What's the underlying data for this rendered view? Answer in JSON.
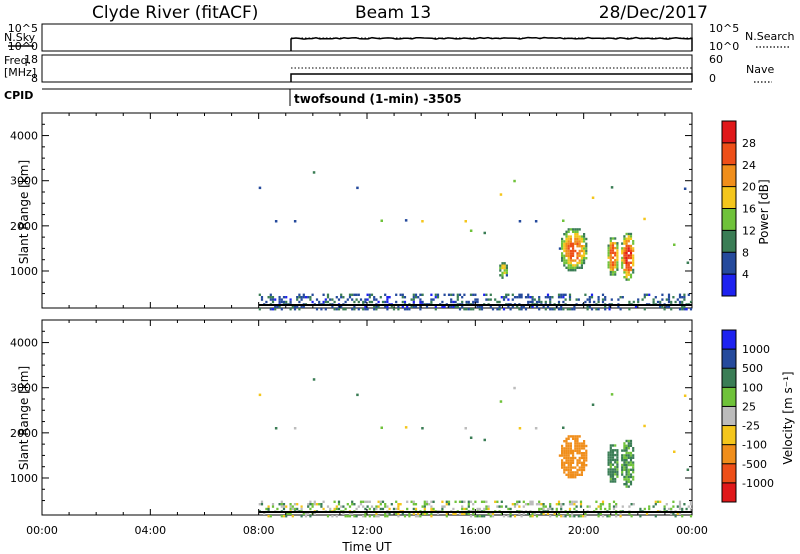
{
  "header": {
    "station": "Clyde River (fitACF)",
    "beam": "Beam 13",
    "date": "28/Dec/2017"
  },
  "panels": {
    "nsky": {
      "label": "N.Sky",
      "left_ticks": [
        "10^5",
        "10^0"
      ],
      "right_ticks": [
        "10^5",
        "10^0"
      ],
      "right_label": "N.Search",
      "right_line": "dotted"
    },
    "freq": {
      "label": "Freq.",
      "unit": "[MHz]",
      "left_ticks": [
        "18",
        "8"
      ],
      "right_ticks": [
        "60",
        "0"
      ],
      "right_label": "Nave",
      "right_line": "dotted"
    },
    "cpid": {
      "label": "CPID",
      "program": "twofsound (1-min) -3505"
    }
  },
  "colors": {
    "power": [
      "#1e22f0",
      "#254a9c",
      "#3a7d55",
      "#6fc23a",
      "#f4c61c",
      "#f08e1b",
      "#ee4f18",
      "#e0181a"
    ],
    "velocity": [
      "#e0181a",
      "#ee4f18",
      "#f08e1b",
      "#f4c61c",
      "#bcbcbc",
      "#6fc23a",
      "#3a7d55",
      "#254a9c",
      "#1e22f0"
    ]
  },
  "chart_data": [
    {
      "type": "heatmap",
      "name": "power-panel",
      "ylabel": "Slant Range [km]",
      "xlabel": "",
      "x_range_hours": [
        0,
        24
      ],
      "y_range_km": [
        180,
        4500
      ],
      "x_ticks": [
        "00:00",
        "04:00",
        "08:00",
        "12:00",
        "16:00",
        "20:00",
        "00:00"
      ],
      "y_ticks": [
        1000,
        2000,
        3000,
        4000
      ],
      "colorbar": {
        "label": "Power [dB]",
        "ticks": [
          "28",
          "24",
          "20",
          "16",
          "12",
          "8",
          "4"
        ],
        "range": [
          0,
          30
        ]
      },
      "data_start_hour": 8,
      "echo_regions": [
        {
          "t_start": 19.0,
          "t_end": 20.2,
          "r_start": 1000,
          "r_end": 2000,
          "peak_db": 26
        },
        {
          "t_start": 20.8,
          "t_end": 21.3,
          "r_start": 900,
          "r_end": 1800,
          "peak_db": 28
        },
        {
          "t_start": 21.3,
          "t_end": 21.9,
          "r_start": 800,
          "r_end": 1900,
          "peak_db": 30
        },
        {
          "t_start": 16.8,
          "t_end": 17.2,
          "r_start": 850,
          "r_end": 1250,
          "peak_db": 18
        },
        {
          "t_start": 8.0,
          "t_end": 24.0,
          "r_start": 180,
          "r_end": 500,
          "peak_db": 8
        }
      ]
    },
    {
      "type": "heatmap",
      "name": "velocity-panel",
      "ylabel": "Slant Range [km]",
      "xlabel": "Time UT",
      "x_range_hours": [
        0,
        24
      ],
      "y_range_km": [
        180,
        4500
      ],
      "x_ticks": [
        "00:00",
        "04:00",
        "08:00",
        "12:00",
        "16:00",
        "20:00",
        "00:00"
      ],
      "y_ticks": [
        1000,
        2000,
        3000,
        4000
      ],
      "colorbar": {
        "label": "Velocity [m s⁻¹]",
        "ticks": [
          "1000",
          "500",
          "100",
          "25",
          "-25",
          "-100",
          "-500",
          "-1000"
        ],
        "range": [
          -1000,
          1000
        ]
      },
      "data_start_hour": 8,
      "echo_regions": [
        {
          "t_start": 19.0,
          "t_end": 20.2,
          "r_start": 1000,
          "r_end": 2000,
          "velocity": -300
        },
        {
          "t_start": 20.8,
          "t_end": 21.3,
          "r_start": 900,
          "r_end": 1800,
          "velocity": 150
        },
        {
          "t_start": 21.3,
          "t_end": 21.9,
          "r_start": 800,
          "r_end": 1900,
          "velocity": 120
        },
        {
          "t_start": 8.0,
          "t_end": 24.0,
          "r_start": 180,
          "r_end": 500,
          "velocity": 50
        }
      ]
    }
  ]
}
